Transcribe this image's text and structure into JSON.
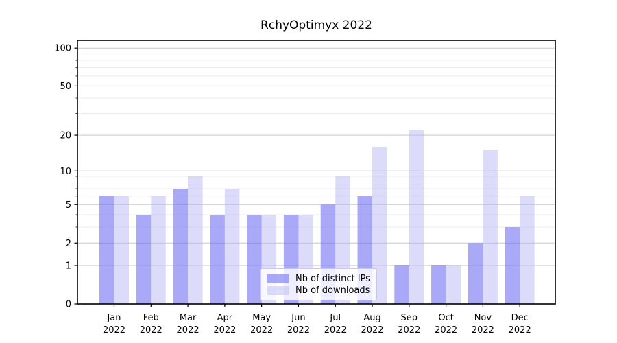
{
  "title": "RchyOptimyx 2022",
  "chart_data": {
    "type": "bar",
    "title": "RchyOptimyx 2022",
    "categories": [
      "Jan",
      "Feb",
      "Mar",
      "Apr",
      "May",
      "Jun",
      "Jul",
      "Aug",
      "Sep",
      "Oct",
      "Nov",
      "Dec"
    ],
    "category_year": "2022",
    "series": [
      {
        "name": "Nb of distinct IPs",
        "color_solid": "#a9a9f8",
        "color_fill": "rgba(125,125,244,0.66)",
        "values": [
          6,
          4,
          7,
          4,
          4,
          4,
          5,
          6,
          1,
          1,
          2,
          3
        ]
      },
      {
        "name": "Nb of downloads",
        "color_solid": "#dcdcfa",
        "color_fill": "rgba(185,185,245,0.5)",
        "values": [
          6,
          6,
          9,
          7,
          4,
          4,
          9,
          16,
          22,
          1,
          15,
          6
        ]
      }
    ],
    "yscale": "log1p",
    "ylim": [
      0,
      115
    ],
    "y_ticks": [
      0,
      1,
      2,
      5,
      10,
      20,
      50,
      100
    ],
    "y_minor_ticks": [
      3,
      4,
      6,
      7,
      8,
      9,
      30,
      40,
      60,
      70,
      80,
      90
    ],
    "grid": true,
    "legend_position": "lower center",
    "colors": {
      "major_grid": "#c6c6c6",
      "minor_grid": "#ebebeb",
      "spine": "#000000",
      "text": "#000000"
    }
  }
}
